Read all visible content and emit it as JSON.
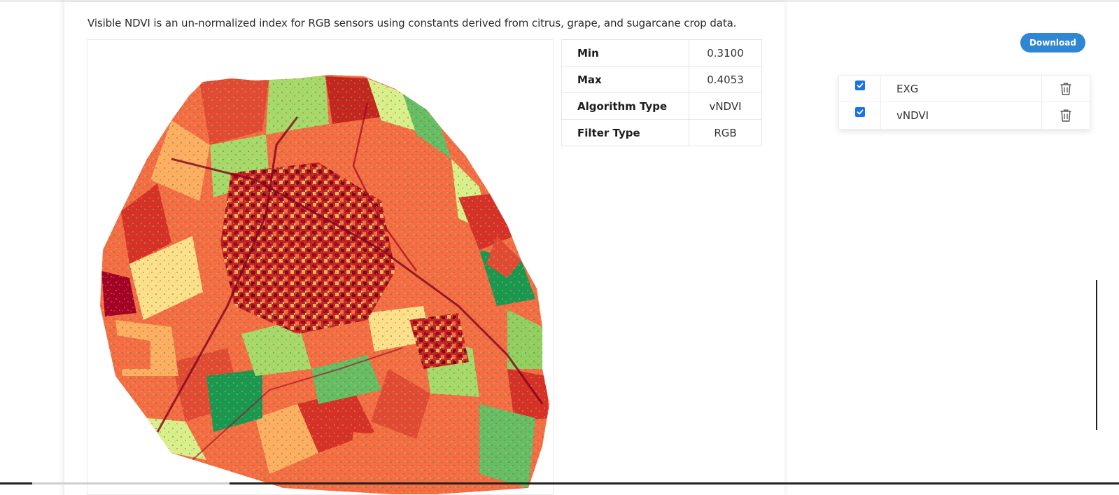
{
  "description": "Visible NDVI is an un-normalized index for RGB sensors using constants derived from citrus, grape, and sugarcane crop data.",
  "stats": [
    {
      "label": "Min",
      "value": "0.3100"
    },
    {
      "label": "Max",
      "value": "0.4053"
    },
    {
      "label": "Algorithm Type",
      "value": "vNDVI"
    },
    {
      "label": "Filter Type",
      "value": "RGB"
    }
  ],
  "download_label": "Download",
  "layers": [
    {
      "name": "EXG",
      "checked": true,
      "delete_icon": "trash-icon"
    },
    {
      "name": "vNDVI",
      "checked": true,
      "delete_icon": "trash-icon"
    }
  ],
  "map": {
    "colors": {
      "red": "#d73027",
      "orange": "#f46d43",
      "yellow": "#fee08b",
      "lightgreen": "#a6d96a",
      "green": "#1a9850"
    }
  },
  "accent": "#2e86d4",
  "checkbox_color": "#1a73e8"
}
